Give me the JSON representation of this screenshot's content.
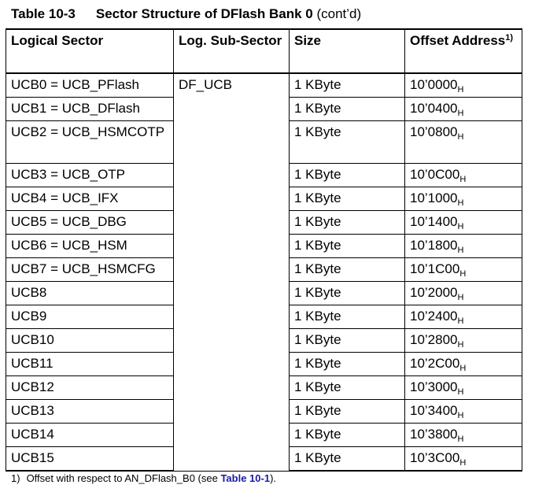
{
  "caption": {
    "number": "Table 10-3",
    "title": "Sector Structure of DFlash Bank 0",
    "continued": "(cont’d)"
  },
  "table": {
    "headers": {
      "logical_sector": "Logical Sector",
      "sub_sector": "Log. Sub-Sector",
      "size": "Size",
      "offset": "Offset Address",
      "offset_note_ref": "1)"
    },
    "sub_sector_value": "DF_UCB",
    "hex_suffix": "H",
    "rows": [
      {
        "sector": "UCB0 = UCB_PFlash",
        "size": "1 KByte",
        "offset": "10’0000"
      },
      {
        "sector": "UCB1 = UCB_DFlash",
        "size": "1 KByte",
        "offset": "10’0400"
      },
      {
        "sector": "UCB2 = UCB_HSMCOTP",
        "size": "1 KByte",
        "offset": "10’0800"
      },
      {
        "sector": "UCB3 = UCB_OTP",
        "size": "1 KByte",
        "offset": "10’0C00"
      },
      {
        "sector": "UCB4 = UCB_IFX",
        "size": "1 KByte",
        "offset": "10’1000"
      },
      {
        "sector": "UCB5 = UCB_DBG",
        "size": "1 KByte",
        "offset": "10’1400"
      },
      {
        "sector": "UCB6 = UCB_HSM",
        "size": "1 KByte",
        "offset": "10’1800"
      },
      {
        "sector": "UCB7 = UCB_HSMCFG",
        "size": "1 KByte",
        "offset": "10’1C00"
      },
      {
        "sector": "UCB8",
        "size": "1 KByte",
        "offset": "10’2000"
      },
      {
        "sector": "UCB9",
        "size": "1 KByte",
        "offset": "10’2400"
      },
      {
        "sector": "UCB10",
        "size": "1 KByte",
        "offset": "10’2800"
      },
      {
        "sector": "UCB11",
        "size": "1 KByte",
        "offset": "10’2C00"
      },
      {
        "sector": "UCB12",
        "size": "1 KByte",
        "offset": "10’3000"
      },
      {
        "sector": "UCB13",
        "size": "1 KByte",
        "offset": "10’3400"
      },
      {
        "sector": "UCB14",
        "size": "1 KByte",
        "offset": "10’3800"
      },
      {
        "sector": "UCB15",
        "size": "1 KByte",
        "offset": "10’3C00"
      }
    ]
  },
  "footnote": {
    "marker": "1)",
    "text_before": "Offset with respect to AN_DFlash_B0 (see ",
    "link": "Table 10-1",
    "text_after": ")."
  },
  "colors": {
    "link": "#1a1aa6"
  }
}
